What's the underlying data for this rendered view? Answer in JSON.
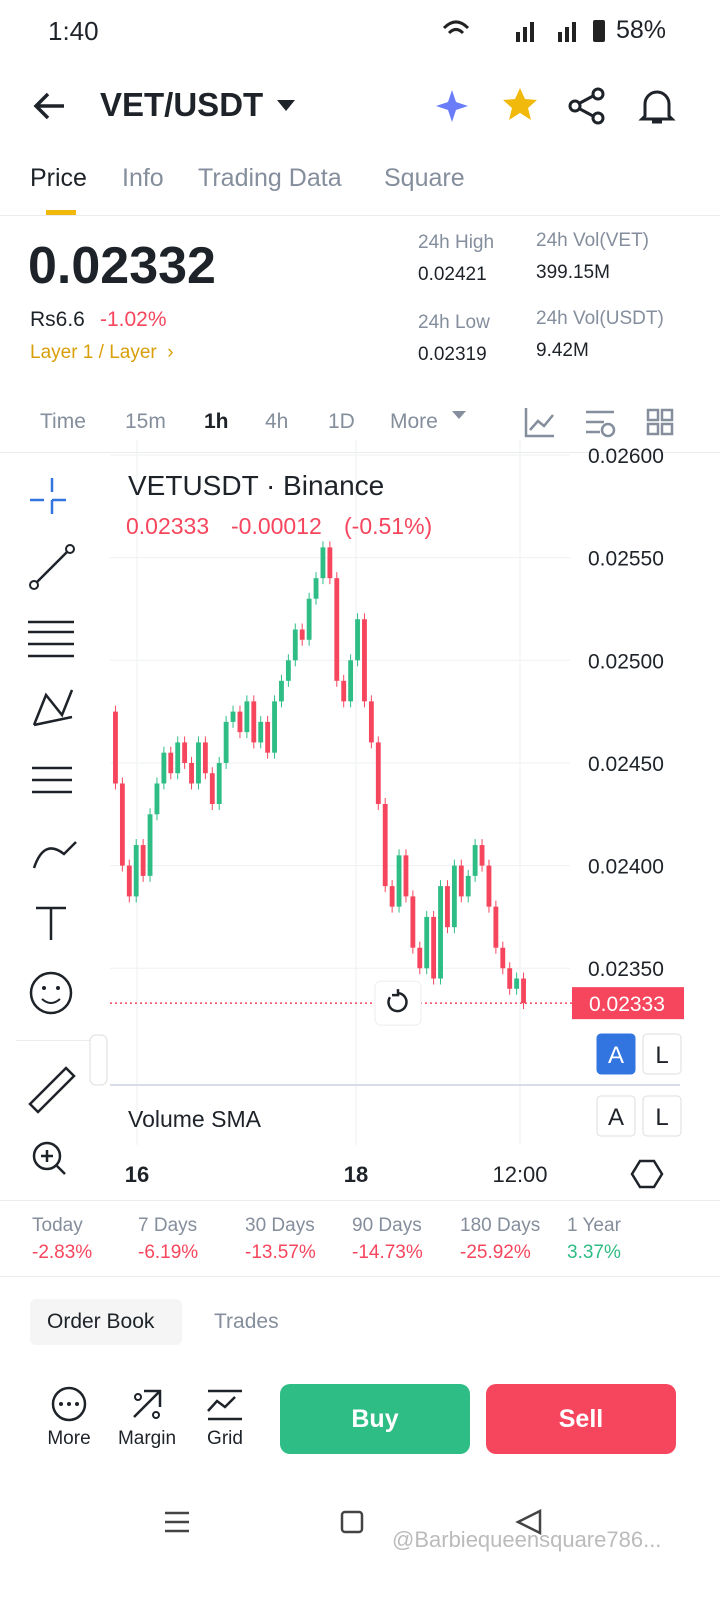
{
  "status": {
    "time": "1:40",
    "battery": "58%"
  },
  "header": {
    "pair": "VET/USDT"
  },
  "tabs": [
    "Price",
    "Info",
    "Trading Data",
    "Square"
  ],
  "price": {
    "last": "0.02332",
    "fiat": "Rs6.6",
    "change": "-1.02%",
    "tag": "Layer 1 / Layer"
  },
  "stats": [
    {
      "label": "24h High",
      "value": "0.02421"
    },
    {
      "label": "24h Vol(VET)",
      "value": "399.15M"
    },
    {
      "label": "24h Low",
      "value": "0.02319"
    },
    {
      "label": "24h Vol(USDT)",
      "value": "9.42M"
    }
  ],
  "intervals": [
    "Time",
    "15m",
    "1h",
    "4h",
    "1D",
    "More"
  ],
  "chart": {
    "symbol": "VETUSDT · Binance",
    "ohlc": [
      "0.02333",
      "-0.00012",
      "(-0.51%)"
    ],
    "ylim": [
      0.02298,
      0.026
    ],
    "yticks": [
      {
        "value": 0.026,
        "label": "0.02600"
      },
      {
        "value": 0.0255,
        "label": "0.02550"
      },
      {
        "value": 0.025,
        "label": "0.02500"
      },
      {
        "value": 0.0245,
        "label": "0.02450"
      },
      {
        "value": 0.024,
        "label": "0.02400"
      },
      {
        "value": 0.0235,
        "label": "0.02350"
      }
    ],
    "open": 0.02475,
    "closes": [
      0.0244,
      0.024,
      0.02385,
      0.0241,
      0.02395,
      0.02425,
      0.0244,
      0.02455,
      0.02445,
      0.0246,
      0.0245,
      0.0244,
      0.0246,
      0.02445,
      0.0243,
      0.0245,
      0.0247,
      0.02475,
      0.02465,
      0.0248,
      0.0246,
      0.0247,
      0.02455,
      0.0248,
      0.0249,
      0.025,
      0.02515,
      0.0251,
      0.0253,
      0.0254,
      0.02555,
      0.0254,
      0.0249,
      0.0248,
      0.025,
      0.0252,
      0.0248,
      0.0246,
      0.0243,
      0.0239,
      0.0238,
      0.02405,
      0.02385,
      0.0236,
      0.0235,
      0.02375,
      0.02345,
      0.0239,
      0.0237,
      0.024,
      0.02385,
      0.02395,
      0.0241,
      0.024,
      0.0238,
      0.0236,
      0.0235,
      0.0234,
      0.02345,
      0.02333
    ],
    "last": 0.02333,
    "xlabels": [
      "16",
      "18",
      "12:00"
    ],
    "volume_label": "Volume SMA",
    "buttons": [
      "A",
      "L"
    ]
  },
  "performance": [
    {
      "label": "Today",
      "value": "-2.83%"
    },
    {
      "label": "7 Days",
      "value": "-6.19%"
    },
    {
      "label": "30 Days",
      "value": "-13.57%"
    },
    {
      "label": "90 Days",
      "value": "-14.73%"
    },
    {
      "label": "180 Days",
      "value": "-25.92%"
    },
    {
      "label": "1 Year",
      "value": "3.37%"
    }
  ],
  "orders": [
    "Order Book",
    "Trades"
  ],
  "actions": [
    "More",
    "Margin",
    "Grid"
  ],
  "buy": "Buy",
  "sell": "Sell",
  "watermark": "@Barbiequeensquare786..."
}
